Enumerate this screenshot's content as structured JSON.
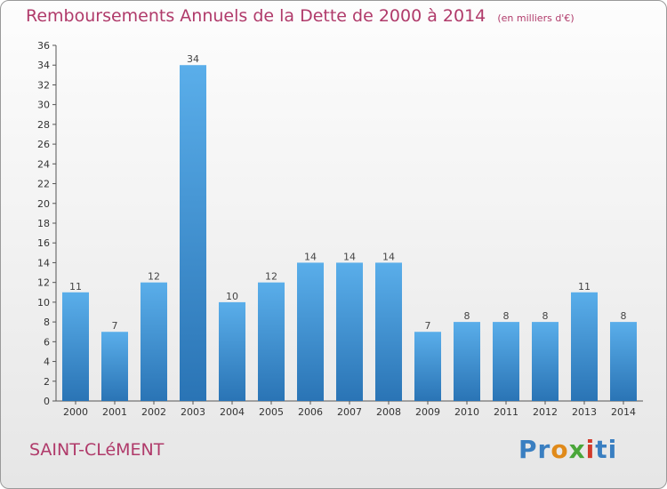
{
  "title": "Remboursements Annuels de la Dette de 2000 à 2014",
  "unit": "(en milliers d'€)",
  "commune": "SAINT-CLéMENT",
  "logo": "Proxiti",
  "colors": {
    "title": "#b03a6a",
    "bar_top": "#5aaeea",
    "bar_bottom": "#2a74b5"
  },
  "chart_data": {
    "type": "bar",
    "title": "Remboursements Annuels de la Dette de 2000 à 2014",
    "categories": [
      "2000",
      "2001",
      "2002",
      "2003",
      "2004",
      "2005",
      "2006",
      "2007",
      "2008",
      "2009",
      "2010",
      "2011",
      "2012",
      "2013",
      "2014"
    ],
    "values": [
      11,
      7,
      12,
      34,
      10,
      12,
      14,
      14,
      14,
      7,
      8,
      8,
      8,
      11,
      8
    ],
    "ylim": [
      0,
      36
    ],
    "yticks": [
      0,
      2,
      4,
      6,
      8,
      10,
      12,
      14,
      16,
      18,
      20,
      22,
      24,
      26,
      28,
      30,
      32,
      34,
      36
    ],
    "grid": false,
    "xlabel": "",
    "ylabel": ""
  }
}
